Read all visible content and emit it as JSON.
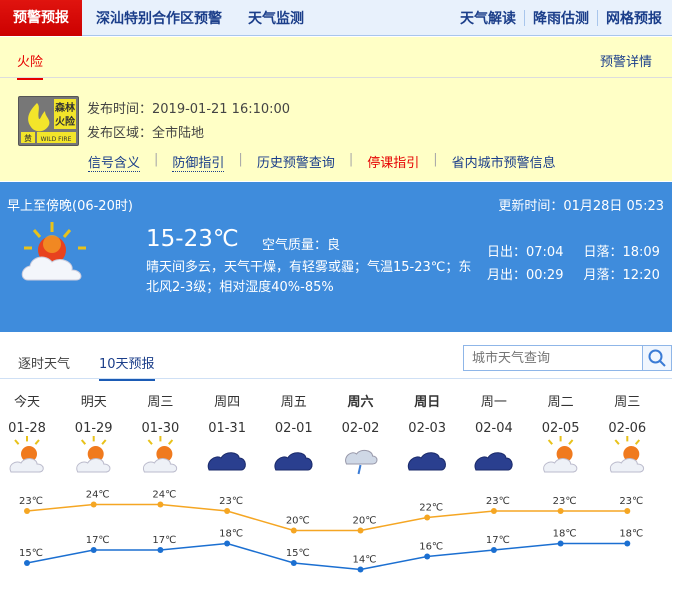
{
  "topnav": {
    "active": "预警预报",
    "links": [
      "深汕特别合作区预警",
      "天气监测"
    ],
    "right": [
      "天气解读",
      "降雨估测",
      "网格预报"
    ]
  },
  "warning": {
    "tab": "火险",
    "detail": "预警详情",
    "icon_text": [
      "森林",
      "火险",
      "黄",
      "WILD FIRE"
    ],
    "publish_time": "发布时间：2019-01-21 16:10:00",
    "publish_area": "发布区域：全市陆地",
    "links": [
      {
        "label": "信号含义"
      },
      {
        "label": "防御指引"
      },
      {
        "label": "历史预警查询"
      },
      {
        "label": "停课指引"
      },
      {
        "label": "省内城市预警信息"
      }
    ]
  },
  "current": {
    "period": "早上至傍晚(06-20时)",
    "updated": "更新时间：01月28日 05:23",
    "temp": "15-23℃",
    "air_quality": "空气质量：良",
    "desc": "晴天间多云，天气干燥，有轻雾或霾；气温15-23℃；东北风2-3级；相对湿度40%-85%",
    "sunrise": "日出：07:04",
    "sunset": "日落：18:09",
    "moonrise": "月出：00:29",
    "moonset": "月落：12:20",
    "icon": "partly-cloudy-icon"
  },
  "tabs": [
    {
      "label": "逐时天气"
    },
    {
      "label": "10天预报",
      "active": true
    }
  ],
  "search": {
    "placeholder": "城市天气查询",
    "icon": "search-icon"
  },
  "chart_data": {
    "type": "line",
    "categories": [
      "今天",
      "明天",
      "周三",
      "周四",
      "周五",
      "周六",
      "周日",
      "周一",
      "周二",
      "周三"
    ],
    "bold": [
      false,
      false,
      false,
      false,
      false,
      true,
      true,
      false,
      false,
      false
    ],
    "dates": [
      "01-28",
      "01-29",
      "01-30",
      "01-31",
      "02-01",
      "02-02",
      "02-03",
      "02-04",
      "02-05",
      "02-06"
    ],
    "icons": [
      "sun-cloud",
      "sun-cloud",
      "cloud-sun",
      "cloudy",
      "cloudy",
      "rain",
      "cloudy",
      "cloudy",
      "cloud-sun",
      "cloud-sun"
    ],
    "series": [
      {
        "name": "high",
        "color": "#f5a623",
        "values": [
          23,
          24,
          24,
          23,
          20,
          20,
          22,
          23,
          23,
          23
        ]
      },
      {
        "name": "low",
        "color": "#1b6fd1",
        "values": [
          15,
          17,
          17,
          18,
          15,
          14,
          16,
          17,
          18,
          18
        ]
      }
    ],
    "unit": "℃"
  }
}
